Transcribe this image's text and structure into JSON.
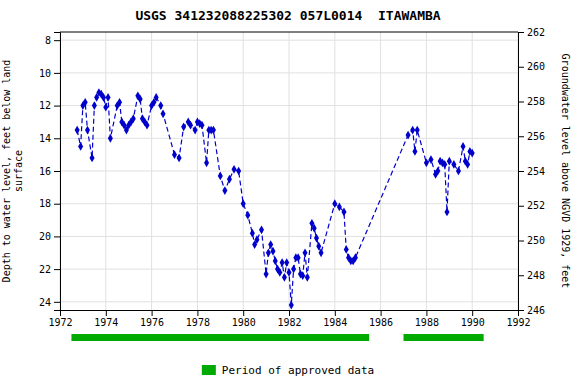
{
  "chart_data": {
    "type": "line",
    "title": "USGS 341232088225302 057L0014  ITAWAMBA",
    "y_label": "Depth to water level, feet below land\nsurface",
    "y2_label": "Groundwater level above NGVD 1929, feet",
    "xlim": [
      1972,
      1992
    ],
    "xticks": [
      1972,
      1974,
      1976,
      1978,
      1980,
      1982,
      1984,
      1986,
      1988,
      1990,
      1992
    ],
    "ylim": [
      24.5,
      7.5
    ],
    "yticks": [
      8,
      10,
      12,
      14,
      16,
      18,
      20,
      22,
      24
    ],
    "y2lim": [
      246,
      262
    ],
    "y2ticks": [
      262,
      260,
      258,
      256,
      254,
      252,
      250,
      248,
      246
    ],
    "grid": true,
    "legend": "bottom",
    "x": [
      1972.75,
      1972.9,
      1973.0,
      1973.1,
      1973.2,
      1973.4,
      1973.5,
      1973.6,
      1973.7,
      1973.8,
      1973.9,
      1974.0,
      1974.1,
      1974.2,
      1974.5,
      1974.6,
      1974.7,
      1974.8,
      1974.9,
      1975.0,
      1975.1,
      1975.2,
      1975.4,
      1975.5,
      1975.6,
      1975.7,
      1975.8,
      1976.0,
      1976.1,
      1976.2,
      1976.4,
      1976.5,
      1977.0,
      1977.2,
      1977.4,
      1977.6,
      1977.7,
      1977.9,
      1978.0,
      1978.1,
      1978.2,
      1978.4,
      1978.5,
      1978.6,
      1978.7,
      1979.0,
      1979.2,
      1979.4,
      1979.6,
      1979.8,
      1980.0,
      1980.2,
      1980.4,
      1980.5,
      1980.6,
      1980.8,
      1981.0,
      1981.1,
      1981.2,
      1981.3,
      1981.4,
      1981.5,
      1981.6,
      1981.7,
      1981.8,
      1981.9,
      1982.0,
      1982.1,
      1982.2,
      1982.3,
      1982.4,
      1982.5,
      1982.6,
      1982.7,
      1982.8,
      1983.0,
      1983.1,
      1983.2,
      1983.3,
      1983.4,
      1984.0,
      1984.2,
      1984.4,
      1984.5,
      1984.6,
      1984.7,
      1984.8,
      1984.9,
      1987.2,
      1987.4,
      1987.5,
      1987.6,
      1988.0,
      1988.2,
      1988.4,
      1988.5,
      1988.6,
      1988.7,
      1988.8,
      1988.9,
      1989.0,
      1989.2,
      1989.4,
      1989.6,
      1989.7,
      1989.8,
      1989.9,
      1990.0
    ],
    "series": [
      {
        "color": "#0000cc",
        "marker": "diamond",
        "line_style": "dashed",
        "values": [
          13.5,
          14.5,
          12.0,
          11.8,
          13.5,
          15.2,
          12.0,
          11.5,
          11.2,
          11.3,
          11.5,
          12.1,
          11.5,
          14.0,
          12.0,
          11.8,
          13.0,
          13.2,
          13.5,
          13.2,
          13.0,
          12.8,
          11.4,
          11.6,
          12.8,
          13.0,
          13.2,
          12.0,
          11.8,
          11.5,
          12.0,
          12.5,
          15.0,
          15.2,
          13.3,
          13.0,
          13.2,
          13.5,
          13.0,
          13.1,
          13.2,
          15.5,
          13.5,
          13.5,
          13.5,
          16.3,
          17.2,
          16.5,
          15.9,
          16.0,
          18.0,
          18.7,
          19.8,
          20.5,
          20.2,
          19.6,
          22.3,
          21.0,
          20.5,
          20.9,
          21.5,
          22.0,
          22.2,
          21.6,
          22.5,
          21.6,
          22.2,
          24.2,
          22.0,
          21.3,
          21.3,
          22.3,
          22.4,
          21.0,
          22.5,
          19.2,
          19.5,
          20.1,
          20.6,
          21.0,
          18.0,
          18.2,
          18.5,
          20.8,
          21.3,
          21.5,
          21.5,
          21.3,
          13.8,
          13.5,
          14.8,
          13.5,
          15.5,
          15.3,
          16.2,
          16.0,
          15.4,
          15.5,
          15.6,
          18.5,
          15.4,
          15.6,
          16.0,
          14.5,
          15.4,
          15.6,
          14.8,
          14.9
        ]
      }
    ],
    "bands": {
      "name": "Period of approved data",
      "color": "#00aa00",
      "ranges": [
        [
          1972.5,
          1985.5
        ],
        [
          1987.0,
          1990.5
        ]
      ]
    }
  }
}
